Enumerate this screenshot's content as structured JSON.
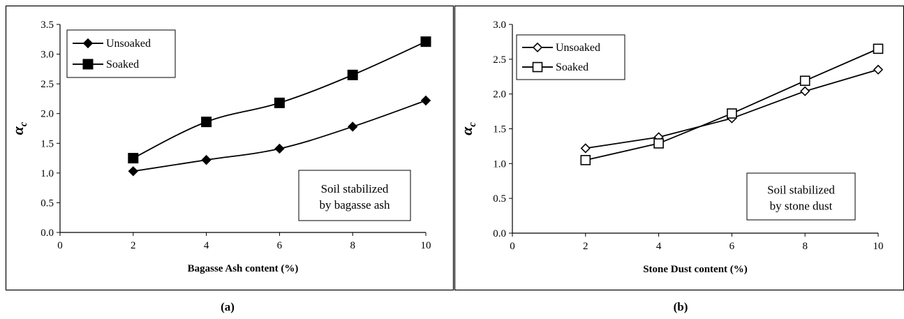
{
  "captions": [
    "(a)",
    "(b)"
  ],
  "chart_data": [
    {
      "type": "line",
      "xlabel": "Bagasse Ash content (%)",
      "ylabel": "α",
      "ylabel_sub": "c",
      "xlim": [
        0,
        10
      ],
      "ylim": [
        0,
        3.5
      ],
      "xticks": [
        0,
        2,
        4,
        6,
        8,
        10
      ],
      "yticks": [
        "0.0",
        "0.5",
        "1.0",
        "1.5",
        "2.0",
        "2.5",
        "3.0",
        "3.5"
      ],
      "grid": false,
      "legend_position": "top-left",
      "annotation": [
        "Soil stabilized",
        "by bagasse ash"
      ],
      "x": [
        2,
        4,
        6,
        8,
        10
      ],
      "series": [
        {
          "name": "Unsoaked",
          "marker": "diamond",
          "filled": true,
          "values": [
            1.03,
            1.22,
            1.41,
            1.78,
            2.22
          ]
        },
        {
          "name": "Soaked",
          "marker": "square",
          "filled": true,
          "values": [
            1.25,
            1.86,
            2.18,
            2.65,
            3.21
          ]
        }
      ]
    },
    {
      "type": "line",
      "xlabel": "Stone Dust content (%)",
      "ylabel": "α",
      "ylabel_sub": "c",
      "xlim": [
        0,
        10
      ],
      "ylim": [
        0,
        3.0
      ],
      "xticks": [
        0,
        2,
        4,
        6,
        8,
        10
      ],
      "yticks": [
        "0.0",
        "0.5",
        "1.0",
        "1.5",
        "2.0",
        "2.5",
        "3.0"
      ],
      "grid": false,
      "legend_position": "top-left",
      "annotation": [
        "Soil stabilized",
        "by stone dust"
      ],
      "x": [
        2,
        4,
        6,
        8,
        10
      ],
      "series": [
        {
          "name": "Unsoaked",
          "marker": "diamond",
          "filled": false,
          "values": [
            1.22,
            1.38,
            1.65,
            2.04,
            2.35
          ]
        },
        {
          "name": "Soaked",
          "marker": "square",
          "filled": false,
          "values": [
            1.05,
            1.29,
            1.72,
            2.19,
            2.65
          ]
        }
      ]
    }
  ]
}
